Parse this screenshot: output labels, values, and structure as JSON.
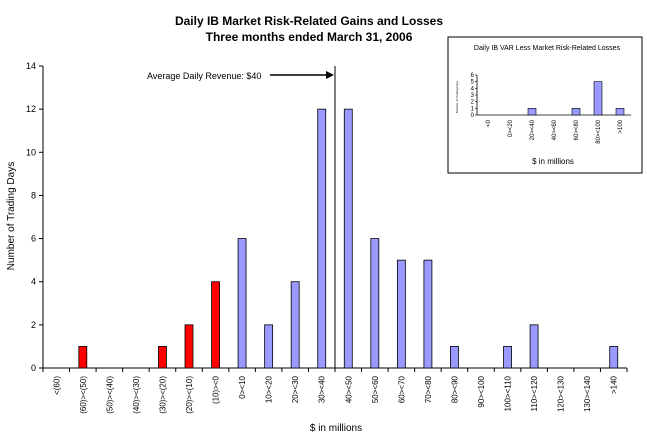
{
  "chart_data": [
    {
      "type": "bar",
      "title": "Daily IB Market Risk-Related Gains and Losses",
      "subtitle": "Three months ended March 31, 2006",
      "xlabel": "$ in millions",
      "ylabel": "Number of Trading Days",
      "ylim": [
        0,
        14
      ],
      "yticks": [
        0,
        2,
        4,
        6,
        8,
        10,
        12,
        14
      ],
      "categories": [
        "<(60)",
        "(60)><(50)",
        "(50)><(40)",
        "(40)><(30)",
        "(30)><(20)",
        "(20)><(10)",
        "(10)><0",
        "0><10",
        "10><20",
        "20><30",
        "30><40",
        "40><50",
        "50><60",
        "60><70",
        "70><80",
        "80><90",
        "90><100",
        "100><110",
        "110><120",
        "120><130",
        "130><140",
        ">140"
      ],
      "values": [
        0,
        1,
        0,
        0,
        1,
        2,
        4,
        6,
        2,
        4,
        12,
        12,
        6,
        5,
        5,
        1,
        0,
        1,
        2,
        0,
        0,
        1
      ],
      "colors": {
        "loss": "#ff0000",
        "gain": "#9999ff"
      },
      "annotation": {
        "text": "Average Daily Revenue: $40",
        "x": 40
      },
      "grid": false
    },
    {
      "type": "bar",
      "title": "Daily IB VAR Less Market Risk-Related Losses",
      "xlabel": "$ in millions",
      "ylabel": "Number of Trading Days",
      "ylim": [
        0,
        6
      ],
      "yticks": [
        0,
        1,
        2,
        3,
        4,
        5,
        6
      ],
      "categories": [
        "<0",
        "0><20",
        "20><40",
        "40><60",
        "60><80",
        "80><100",
        ">100"
      ],
      "values": [
        0,
        0,
        1,
        0,
        1,
        5,
        1
      ],
      "colors": {
        "bar": "#9999ff"
      },
      "grid": false
    }
  ]
}
